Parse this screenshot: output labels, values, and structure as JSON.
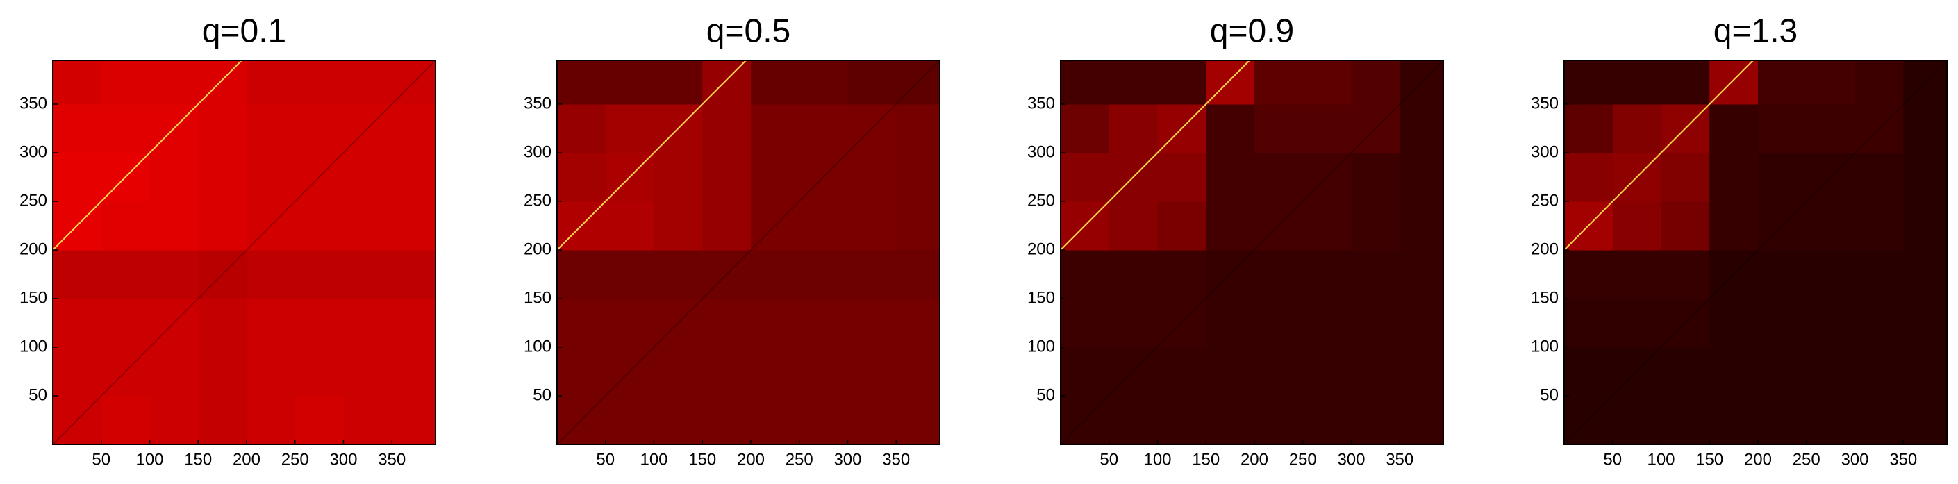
{
  "chart_data": [
    {
      "type": "heatmap",
      "title": "q=0.1",
      "colormap": "hot",
      "xlim": [
        0,
        395
      ],
      "ylim": [
        0,
        395
      ],
      "xticks": [
        50,
        100,
        150,
        200,
        250,
        300,
        350
      ],
      "yticks": [
        50,
        100,
        150,
        200,
        250,
        300,
        350
      ],
      "bins": [
        0,
        50,
        100,
        150,
        200,
        250,
        300,
        350,
        395
      ],
      "values": [
        [
          0.3,
          0.31,
          0.3,
          0.29,
          0.3,
          0.31,
          0.3,
          0.3
        ],
        [
          0.3,
          0.3,
          0.3,
          0.29,
          0.3,
          0.3,
          0.3,
          0.3
        ],
        [
          0.3,
          0.3,
          0.3,
          0.29,
          0.3,
          0.3,
          0.3,
          0.3
        ],
        [
          0.28,
          0.28,
          0.28,
          0.27,
          0.28,
          0.28,
          0.28,
          0.28
        ],
        [
          0.34,
          0.33,
          0.33,
          0.32,
          0.31,
          0.31,
          0.31,
          0.31
        ],
        [
          0.34,
          0.34,
          0.33,
          0.32,
          0.31,
          0.31,
          0.31,
          0.31
        ],
        [
          0.33,
          0.33,
          0.33,
          0.32,
          0.31,
          0.31,
          0.31,
          0.31
        ],
        [
          0.31,
          0.32,
          0.32,
          0.32,
          0.3,
          0.3,
          0.3,
          0.3
        ]
      ]
    },
    {
      "type": "heatmap",
      "title": "q=0.5",
      "colormap": "hot",
      "xlim": [
        0,
        395
      ],
      "ylim": [
        0,
        395
      ],
      "xticks": [
        50,
        100,
        150,
        200,
        250,
        300,
        350
      ],
      "yticks": [
        50,
        100,
        150,
        200,
        250,
        300,
        350
      ],
      "bins": [
        0,
        50,
        100,
        150,
        200,
        250,
        300,
        350,
        395
      ],
      "values": [
        [
          0.17,
          0.17,
          0.17,
          0.17,
          0.17,
          0.17,
          0.17,
          0.17
        ],
        [
          0.17,
          0.17,
          0.17,
          0.17,
          0.17,
          0.17,
          0.17,
          0.17
        ],
        [
          0.17,
          0.17,
          0.17,
          0.17,
          0.17,
          0.17,
          0.17,
          0.17
        ],
        [
          0.16,
          0.16,
          0.16,
          0.16,
          0.16,
          0.16,
          0.16,
          0.16
        ],
        [
          0.26,
          0.26,
          0.24,
          0.22,
          0.18,
          0.18,
          0.18,
          0.17
        ],
        [
          0.24,
          0.25,
          0.24,
          0.22,
          0.18,
          0.18,
          0.18,
          0.17
        ],
        [
          0.22,
          0.24,
          0.24,
          0.22,
          0.18,
          0.18,
          0.18,
          0.17
        ],
        [
          0.15,
          0.15,
          0.15,
          0.22,
          0.15,
          0.15,
          0.14,
          0.14
        ]
      ]
    },
    {
      "type": "heatmap",
      "title": "q=0.9",
      "colormap": "hot",
      "xlim": [
        0,
        395
      ],
      "ylim": [
        0,
        395
      ],
      "xticks": [
        50,
        100,
        150,
        200,
        250,
        300,
        350
      ],
      "yticks": [
        50,
        100,
        150,
        200,
        250,
        300,
        350
      ],
      "bins": [
        0,
        50,
        100,
        150,
        200,
        250,
        300,
        350,
        395
      ],
      "values": [
        [
          0.08,
          0.08,
          0.08,
          0.08,
          0.08,
          0.08,
          0.08,
          0.08
        ],
        [
          0.08,
          0.08,
          0.08,
          0.08,
          0.08,
          0.08,
          0.08,
          0.08
        ],
        [
          0.09,
          0.09,
          0.09,
          0.08,
          0.08,
          0.08,
          0.08,
          0.08
        ],
        [
          0.09,
          0.09,
          0.09,
          0.08,
          0.08,
          0.08,
          0.08,
          0.08
        ],
        [
          0.22,
          0.2,
          0.18,
          0.1,
          0.1,
          0.1,
          0.09,
          0.08
        ],
        [
          0.2,
          0.2,
          0.2,
          0.1,
          0.1,
          0.1,
          0.09,
          0.08
        ],
        [
          0.16,
          0.2,
          0.22,
          0.1,
          0.12,
          0.12,
          0.12,
          0.08
        ],
        [
          0.1,
          0.1,
          0.1,
          0.24,
          0.14,
          0.14,
          0.12,
          0.08
        ]
      ]
    },
    {
      "type": "heatmap",
      "title": "q=1.3",
      "colormap": "hot",
      "xlim": [
        0,
        395
      ],
      "ylim": [
        0,
        395
      ],
      "xticks": [
        50,
        100,
        150,
        200,
        250,
        300,
        350
      ],
      "yticks": [
        50,
        100,
        150,
        200,
        250,
        300,
        350
      ],
      "bins": [
        0,
        50,
        100,
        150,
        200,
        250,
        300,
        350,
        395
      ],
      "values": [
        [
          0.06,
          0.06,
          0.06,
          0.06,
          0.06,
          0.06,
          0.06,
          0.06
        ],
        [
          0.06,
          0.06,
          0.06,
          0.06,
          0.06,
          0.06,
          0.06,
          0.06
        ],
        [
          0.07,
          0.07,
          0.07,
          0.06,
          0.06,
          0.06,
          0.06,
          0.06
        ],
        [
          0.08,
          0.08,
          0.08,
          0.06,
          0.06,
          0.06,
          0.06,
          0.06
        ],
        [
          0.24,
          0.2,
          0.17,
          0.08,
          0.07,
          0.07,
          0.07,
          0.06
        ],
        [
          0.2,
          0.21,
          0.19,
          0.08,
          0.07,
          0.07,
          0.07,
          0.06
        ],
        [
          0.14,
          0.19,
          0.21,
          0.08,
          0.09,
          0.09,
          0.09,
          0.06
        ],
        [
          0.08,
          0.08,
          0.08,
          0.22,
          0.1,
          0.1,
          0.09,
          0.06
        ]
      ]
    }
  ]
}
